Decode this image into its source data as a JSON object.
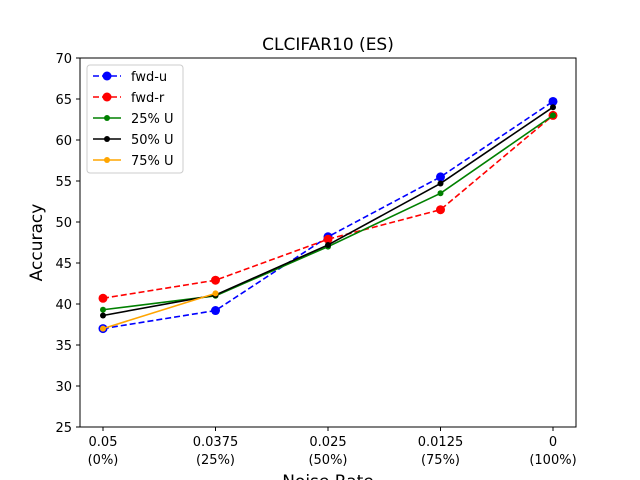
{
  "chart_data": {
    "type": "line",
    "title": "CLCIFAR10 (ES)",
    "xlabel": "Noise Rate",
    "ylabel": "Accuracy",
    "categories": [
      "0.05\n(0%)",
      "0.0375\n(25%)",
      "0.025\n(50%)",
      "0.0125\n(75%)",
      "0\n(100%)"
    ],
    "ylim": [
      25,
      70
    ],
    "yticks": [
      25,
      30,
      35,
      40,
      45,
      50,
      55,
      60,
      65,
      70
    ],
    "grid": false,
    "legend_position": "top-left",
    "series": [
      {
        "name": "fwd-u",
        "color": "#0000ff",
        "style": "dashed",
        "marker": "large",
        "values": [
          37.0,
          39.2,
          48.2,
          55.5,
          64.7
        ]
      },
      {
        "name": "fwd-r",
        "color": "#ff0000",
        "style": "dashed",
        "marker": "large",
        "values": [
          40.7,
          42.9,
          47.9,
          51.5,
          63.0
        ]
      },
      {
        "name": "25% U",
        "color": "#008000",
        "style": "solid",
        "marker": "small",
        "values": [
          39.3,
          41.0,
          47.0,
          53.5,
          63.0
        ]
      },
      {
        "name": "50% U",
        "color": "#000000",
        "style": "solid",
        "marker": "small",
        "values": [
          38.6,
          41.1,
          47.2,
          54.7,
          64.0
        ]
      },
      {
        "name": "75% U",
        "color": "#ffa500",
        "style": "solid",
        "marker": "small",
        "values": [
          37.0,
          41.3,
          null,
          null,
          null
        ]
      }
    ]
  }
}
